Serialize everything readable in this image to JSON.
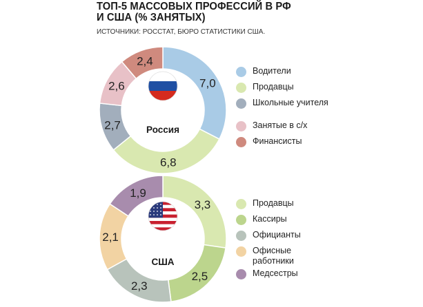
{
  "header": {
    "title_line1": "ТОП-5 МАССОВЫХ ПРОФЕССИЙ В РФ",
    "title_line2": "И США (% ЗАНЯТЫХ)",
    "source": "ИСТОЧНИКИ: РОССТАТ, БЮРО СТАТИСТИКИ США."
  },
  "chart_data": [
    {
      "type": "donut",
      "country_label": "Россия",
      "flag_icon": "russia-flag-icon",
      "slices": [
        {
          "name": "Водители",
          "value": 7.0,
          "label": "7,0",
          "color": "#a9cbe6"
        },
        {
          "name": "Продавцы",
          "value": 6.8,
          "label": "6,8",
          "color": "#d9e8b0"
        },
        {
          "name": "Школьные учителя",
          "value": 2.7,
          "label": "2,7",
          "color": "#a2aebc"
        },
        {
          "name": "Занятые в с/х",
          "value": 2.6,
          "label": "2,6",
          "color": "#e8c1c7"
        },
        {
          "name": "Финансисты",
          "value": 2.4,
          "label": "2,4",
          "color": "#cf8a7e"
        }
      ]
    },
    {
      "type": "donut",
      "country_label": "США",
      "flag_icon": "usa-flag-icon",
      "slices": [
        {
          "name": "Продавцы",
          "value": 3.3,
          "label": "3,3",
          "color": "#d9e8b0"
        },
        {
          "name": "Кассиры",
          "value": 2.5,
          "label": "2,5",
          "color": "#bcd58d"
        },
        {
          "name": "Официанты",
          "value": 2.3,
          "label": "2,3",
          "color": "#b8c3bb"
        },
        {
          "name": "Офисные работники",
          "value": 2.1,
          "label": "2,1",
          "color": "#f2d3a3"
        },
        {
          "name": "Медсестры",
          "value": 1.9,
          "label": "1,9",
          "color": "#a88cad"
        }
      ]
    }
  ],
  "legends": [
    {
      "items": [
        {
          "label": "Водители",
          "color": "#a9cbe6"
        },
        {
          "label": "Продавцы",
          "color": "#d9e8b0"
        },
        {
          "label": "Школьные учителя",
          "color": "#a2aebc"
        },
        {
          "label": "Занятые в с/х",
          "color": "#e8c1c7"
        },
        {
          "label": "Финансисты",
          "color": "#cf8a7e"
        }
      ]
    },
    {
      "items": [
        {
          "label": "Продавцы",
          "color": "#d9e8b0"
        },
        {
          "label": "Кассиры",
          "color": "#bcd58d"
        },
        {
          "label": "Официанты",
          "color": "#b8c3bb"
        },
        {
          "label": "Офисные работники",
          "color": "#f2d3a3"
        },
        {
          "label": "Медсестры",
          "color": "#a88cad"
        }
      ]
    }
  ]
}
